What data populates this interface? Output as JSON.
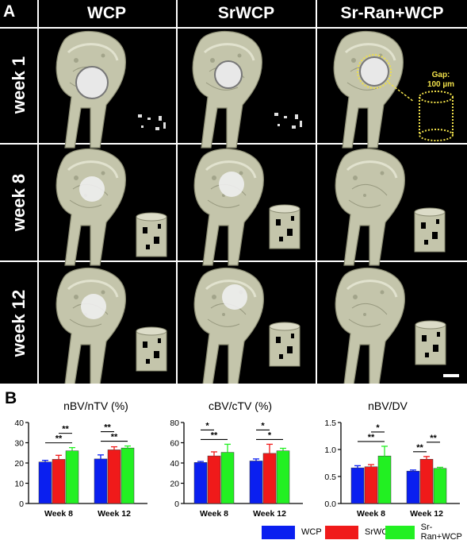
{
  "panel_a": {
    "label": "A",
    "columns": [
      "WCP",
      "SrWCP",
      "Sr-Ran+WCP"
    ],
    "rows": [
      "week 1",
      "week 8",
      "week 12"
    ],
    "gap_annotation": [
      "Gap:",
      "100 µm"
    ]
  },
  "panel_b": {
    "label": "B",
    "legend": [
      {
        "name": "WCP",
        "color": "#0a1ff0"
      },
      {
        "name": "SrWCP",
        "color": "#f01a1a"
      },
      {
        "name": "Sr-Ran+WCP",
        "color": "#22f022"
      }
    ]
  },
  "chart_data": [
    {
      "type": "bar",
      "title": "nBV/nTV (%)",
      "categories": [
        "Week 8",
        "Week 12"
      ],
      "ylim": [
        0,
        40
      ],
      "yticks": [
        0,
        10,
        20,
        30,
        40
      ],
      "series": [
        {
          "name": "WCP",
          "values": [
            20.5,
            22.0
          ],
          "errors": [
            0.8,
            2.0
          ]
        },
        {
          "name": "SrWCP",
          "values": [
            21.8,
            26.5
          ],
          "errors": [
            2.0,
            1.5
          ]
        },
        {
          "name": "Sr-Ran+WCP",
          "values": [
            26.0,
            27.4
          ],
          "errors": [
            1.6,
            1.0
          ]
        }
      ],
      "significance": [
        {
          "group": "Week 8",
          "from": "WCP",
          "to": "Sr-Ran+WCP",
          "label": "**"
        },
        {
          "group": "Week 8",
          "from": "SrWCP",
          "to": "Sr-Ran+WCP",
          "label": "**"
        },
        {
          "group": "Week 12",
          "from": "WCP",
          "to": "Sr-Ran+WCP",
          "label": "**"
        },
        {
          "group": "Week 12",
          "from": "WCP",
          "to": "SrWCP",
          "label": "**"
        }
      ]
    },
    {
      "type": "bar",
      "title": "cBV/cTV (%)",
      "categories": [
        "Week 8",
        "Week 12"
      ],
      "ylim": [
        0,
        80
      ],
      "yticks": [
        0,
        20,
        40,
        60,
        80
      ],
      "series": [
        {
          "name": "WCP",
          "values": [
            40.5,
            42.0
          ],
          "errors": [
            1.0,
            2.0
          ]
        },
        {
          "name": "SrWCP",
          "values": [
            47.0,
            49.5
          ],
          "errors": [
            4.0,
            9.0
          ]
        },
        {
          "name": "Sr-Ran+WCP",
          "values": [
            50.5,
            52.0
          ],
          "errors": [
            8.0,
            2.5
          ]
        }
      ],
      "significance": [
        {
          "group": "Week 8",
          "from": "WCP",
          "to": "Sr-Ran+WCP",
          "label": "**"
        },
        {
          "group": "Week 8",
          "from": "WCP",
          "to": "SrWCP",
          "label": "*"
        },
        {
          "group": "Week 12",
          "from": "WCP",
          "to": "Sr-Ran+WCP",
          "label": "*"
        },
        {
          "group": "Week 12",
          "from": "WCP",
          "to": "SrWCP",
          "label": "*"
        }
      ]
    },
    {
      "type": "bar",
      "title": "nBV/DV",
      "categories": [
        "Week 8",
        "Week 12"
      ],
      "ylim": [
        0,
        1.5
      ],
      "yticks": [
        0.0,
        0.5,
        1.0,
        1.5
      ],
      "tick_format": "1dp",
      "series": [
        {
          "name": "WCP",
          "values": [
            0.66,
            0.6
          ],
          "errors": [
            0.04,
            0.02
          ]
        },
        {
          "name": "SrWCP",
          "values": [
            0.68,
            0.82
          ],
          "errors": [
            0.04,
            0.05
          ]
        },
        {
          "name": "Sr-Ran+WCP",
          "values": [
            0.88,
            0.65
          ],
          "errors": [
            0.18,
            0.02
          ]
        }
      ],
      "significance": [
        {
          "group": "Week 8",
          "from": "WCP",
          "to": "Sr-Ran+WCP",
          "label": "**"
        },
        {
          "group": "Week 8",
          "from": "SrWCP",
          "to": "Sr-Ran+WCP",
          "label": "*"
        },
        {
          "group": "Week 12",
          "from": "WCP",
          "to": "SrWCP",
          "label": "**"
        },
        {
          "group": "Week 12",
          "from": "SrWCP",
          "to": "Sr-Ran+WCP",
          "label": "**"
        }
      ]
    }
  ]
}
